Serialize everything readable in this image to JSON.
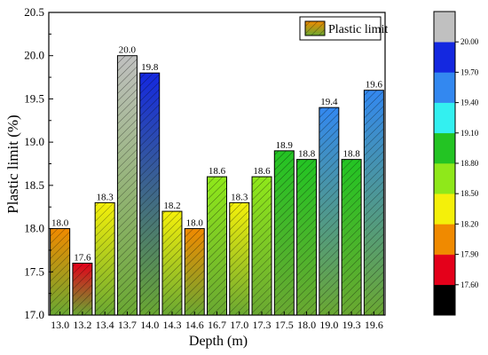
{
  "chart_data": {
    "type": "bar",
    "xlabel": "Depth (m)",
    "ylabel": "Plastic limit (%)",
    "legend": {
      "label": "Plastic limit",
      "placement": "top-right"
    },
    "ylim": [
      17.0,
      20.5
    ],
    "yticks": [
      "17.0",
      "17.5",
      "18.0",
      "18.5",
      "19.0",
      "19.5",
      "20.0",
      "20.5"
    ],
    "categories": [
      "13.0",
      "13.2",
      "13.4",
      "13.7",
      "14.0",
      "14.3",
      "14.6",
      "16.7",
      "17.0",
      "17.3",
      "17.5",
      "18.0",
      "19.0",
      "19.3",
      "19.6"
    ],
    "values": [
      18.0,
      17.6,
      18.3,
      20.0,
      19.8,
      18.2,
      18.0,
      18.6,
      18.3,
      18.6,
      18.9,
      18.8,
      19.4,
      18.8,
      19.6
    ],
    "value_labels": [
      "18.0",
      "17.6",
      "18.3",
      "20.0",
      "19.8",
      "18.2",
      "18.0",
      "18.6",
      "18.3",
      "18.6",
      "18.9",
      "18.8",
      "19.4",
      "18.8",
      "19.6"
    ],
    "colorbar": {
      "ticks": [
        "17.60",
        "17.90",
        "18.20",
        "18.50",
        "18.80",
        "19.10",
        "19.40",
        "19.70",
        "20.00"
      ],
      "colors": [
        "#000000",
        "#e4001a",
        "#f08a00",
        "#f4f00a",
        "#8fe81a",
        "#23c423",
        "#33f0f0",
        "#3388f0",
        "#1428e0",
        "#c0c0c0"
      ]
    },
    "fill_pattern": "hatched-gradient",
    "fill_bottom_color": "#6aa832"
  }
}
